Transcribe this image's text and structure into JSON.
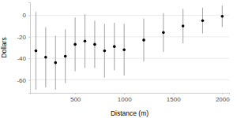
{
  "chart_data": {
    "type": "scatter",
    "x_label": "Distance (m)",
    "y_label": "Dollars",
    "x": [
      100,
      200,
      300,
      400,
      500,
      600,
      700,
      800,
      900,
      1000,
      1200,
      1400,
      1600,
      1800,
      2000
    ],
    "values": [
      -33,
      -39,
      -44,
      -38,
      -27,
      -24,
      -27,
      -33,
      -29,
      -32,
      -23,
      -16,
      -10,
      -5,
      -1
    ],
    "errors": [
      36,
      28,
      25,
      25,
      25,
      25,
      22,
      25,
      22,
      24,
      20,
      18,
      16,
      12,
      10
    ],
    "color": "#000000",
    "xlim": [
      40,
      2070
    ],
    "xticks": [
      500,
      1000,
      1500,
      2000
    ],
    "ylim": [
      -72,
      12
    ],
    "yticks": [
      -60,
      -40,
      -20,
      0
    ],
    "grid": true
  }
}
